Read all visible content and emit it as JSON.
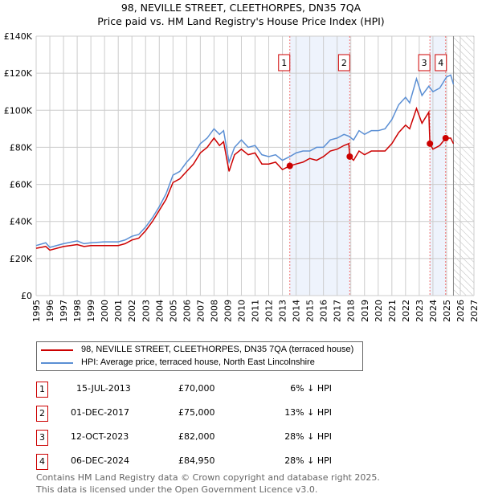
{
  "chart_data": {
    "type": "line",
    "title": "98, NEVILLE STREET, CLEETHORPES, DN35 7QA",
    "subtitle": "Price paid vs. HM Land Registry's House Price Index (HPI)",
    "xlim": [
      1995,
      2027
    ],
    "ylim": [
      0,
      140000
    ],
    "x_ticks": [
      "1995",
      "1996",
      "1997",
      "1998",
      "1999",
      "2000",
      "2001",
      "2002",
      "2003",
      "2004",
      "2005",
      "2006",
      "2007",
      "2008",
      "2009",
      "2010",
      "2011",
      "2012",
      "2013",
      "2014",
      "2015",
      "2016",
      "2017",
      "2018",
      "2019",
      "2020",
      "2021",
      "2022",
      "2023",
      "2024",
      "2025",
      "2026",
      "2027"
    ],
    "y_ticks": [
      {
        "v": 0,
        "label": "£0"
      },
      {
        "v": 20000,
        "label": "£20K"
      },
      {
        "v": 40000,
        "label": "£40K"
      },
      {
        "v": 60000,
        "label": "£60K"
      },
      {
        "v": 80000,
        "label": "£80K"
      },
      {
        "v": 100000,
        "label": "£100K"
      },
      {
        "v": 120000,
        "label": "£120K"
      },
      {
        "v": 140000,
        "label": "£140K"
      }
    ],
    "grid": true,
    "shaded_ranges": [
      [
        2013.54,
        2017.92
      ],
      [
        2023.78,
        2024.93
      ]
    ],
    "forecast_hatch_from": 2025.5,
    "series": [
      {
        "name": "98, NEVILLE STREET, CLEETHORPES, DN35 7QA (terraced house)",
        "color": "#cc0000",
        "x": [
          1995,
          1995.7,
          1996,
          1997,
          1998,
          1998.5,
          1999,
          2000,
          2001,
          2001.5,
          2002,
          2002.5,
          2003,
          2003.5,
          2004,
          2004.5,
          2005,
          2005.5,
          2006,
          2006.5,
          2007,
          2007.5,
          2008,
          2008.4,
          2008.7,
          2009.1,
          2009.5,
          2010,
          2010.5,
          2011,
          2011.5,
          2012,
          2012.5,
          2013,
          2013.54,
          2014,
          2014.5,
          2015,
          2015.5,
          2016,
          2016.5,
          2017,
          2017.5,
          2017.85,
          2017.92,
          2018.2,
          2018.6,
          2019,
          2019.5,
          2020,
          2020.5,
          2021,
          2021.5,
          2022,
          2022.3,
          2022.8,
          2023.2,
          2023.7,
          2023.78,
          2024,
          2024.5,
          2024.93,
          2025.3,
          2025.5
        ],
        "y": [
          25500,
          26500,
          24500,
          26500,
          27500,
          26500,
          27000,
          27000,
          27000,
          28000,
          30000,
          31000,
          35000,
          40000,
          46000,
          52000,
          61000,
          63000,
          67000,
          71000,
          77000,
          80000,
          85000,
          81000,
          83000,
          67000,
          76000,
          79000,
          76000,
          77000,
          71000,
          71000,
          72000,
          68000,
          70000,
          71000,
          72000,
          74000,
          73000,
          75000,
          78000,
          79000,
          81000,
          82000,
          75000,
          73000,
          78000,
          76000,
          78000,
          78000,
          78000,
          82000,
          88000,
          92000,
          90000,
          101000,
          93000,
          99000,
          82000,
          79000,
          81000,
          84950,
          85000,
          82000
        ]
      },
      {
        "name": "HPI: Average price, terraced house, North East Lincolnshire",
        "color": "#5b8fd4",
        "x": [
          1995,
          1995.7,
          1996,
          1997,
          1998,
          1998.5,
          1999,
          2000,
          2001,
          2001.5,
          2002,
          2002.5,
          2003,
          2003.5,
          2004,
          2004.5,
          2005,
          2005.5,
          2006,
          2006.5,
          2007,
          2007.5,
          2008,
          2008.4,
          2008.7,
          2009.1,
          2009.5,
          2010,
          2010.5,
          2011,
          2011.5,
          2012,
          2012.5,
          2013,
          2013.54,
          2014,
          2014.5,
          2015,
          2015.5,
          2016,
          2016.5,
          2017,
          2017.5,
          2017.85,
          2018.2,
          2018.6,
          2019,
          2019.5,
          2020,
          2020.5,
          2021,
          2021.5,
          2022,
          2022.3,
          2022.8,
          2023.2,
          2023.7,
          2024,
          2024.5,
          2025,
          2025.3,
          2025.5
        ],
        "y": [
          27000,
          28500,
          26000,
          28000,
          29500,
          28000,
          28500,
          29000,
          29000,
          30000,
          32000,
          33000,
          37000,
          42000,
          48000,
          55000,
          65000,
          67000,
          72000,
          76000,
          82000,
          85000,
          90000,
          87000,
          89000,
          72000,
          80000,
          84000,
          80000,
          81000,
          76000,
          75000,
          76000,
          73000,
          75000,
          77000,
          78000,
          78000,
          80000,
          80000,
          84000,
          85000,
          87000,
          86000,
          84000,
          89000,
          87000,
          89000,
          89000,
          90000,
          95000,
          103000,
          107000,
          104000,
          117000,
          108000,
          113000,
          110000,
          112000,
          118000,
          119000,
          114000
        ]
      }
    ],
    "sales": [
      {
        "n": "1",
        "x": 2013.54,
        "y": 70000,
        "date": "15-JUL-2013",
        "price": "£70,000",
        "hpi": "6% ↓ HPI"
      },
      {
        "n": "2",
        "x": 2017.92,
        "y": 75000,
        "date": "01-DEC-2017",
        "price": "£75,000",
        "hpi": "13% ↓ HPI"
      },
      {
        "n": "3",
        "x": 2023.78,
        "y": 82000,
        "date": "12-OCT-2023",
        "price": "£82,000",
        "hpi": "28% ↓ HPI"
      },
      {
        "n": "4",
        "x": 2024.93,
        "y": 84950,
        "date": "06-DEC-2024",
        "price": "£84,950",
        "hpi": "28% ↓ HPI"
      }
    ]
  },
  "legend": {
    "property": "98, NEVILLE STREET, CLEETHORPES, DN35 7QA (terraced house)",
    "hpi": "HPI: Average price, terraced house, North East Lincolnshire"
  },
  "footer": {
    "line1": "Contains HM Land Registry data © Crown copyright and database right 2025.",
    "line2": "This data is licensed under the Open Government Licence v3.0."
  }
}
